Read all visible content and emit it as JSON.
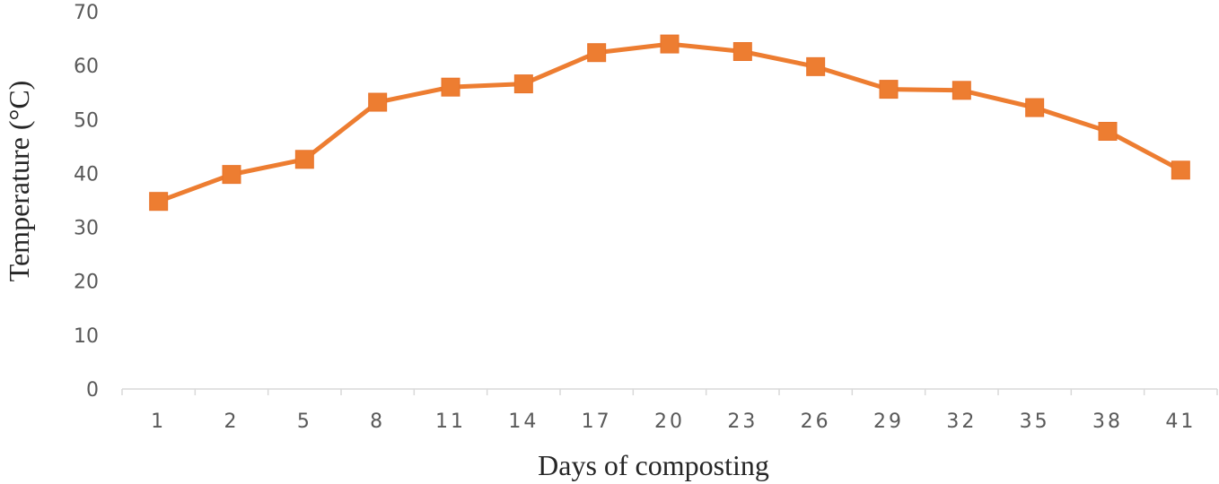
{
  "chart_data": {
    "type": "line",
    "title": "",
    "xlabel": "Days of composting",
    "ylabel": "Temperature (°C)",
    "ylim": [
      0,
      70
    ],
    "yticks": [
      "0",
      "10",
      "20",
      "30",
      "40",
      "50",
      "60",
      "70"
    ],
    "categories": [
      "1",
      "2",
      "5",
      "8",
      "11",
      "14",
      "17",
      "20",
      "23",
      "26",
      "29",
      "32",
      "35",
      "38",
      "41"
    ],
    "series": [
      {
        "values": [
          34.8,
          39.8,
          42.6,
          53.2,
          56.0,
          56.6,
          62.4,
          64.0,
          62.6,
          59.8,
          55.6,
          55.4,
          52.2,
          47.8,
          40.6
        ],
        "color": "#ED7D31",
        "marker": "square"
      }
    ],
    "grid": false,
    "legend": "none"
  }
}
